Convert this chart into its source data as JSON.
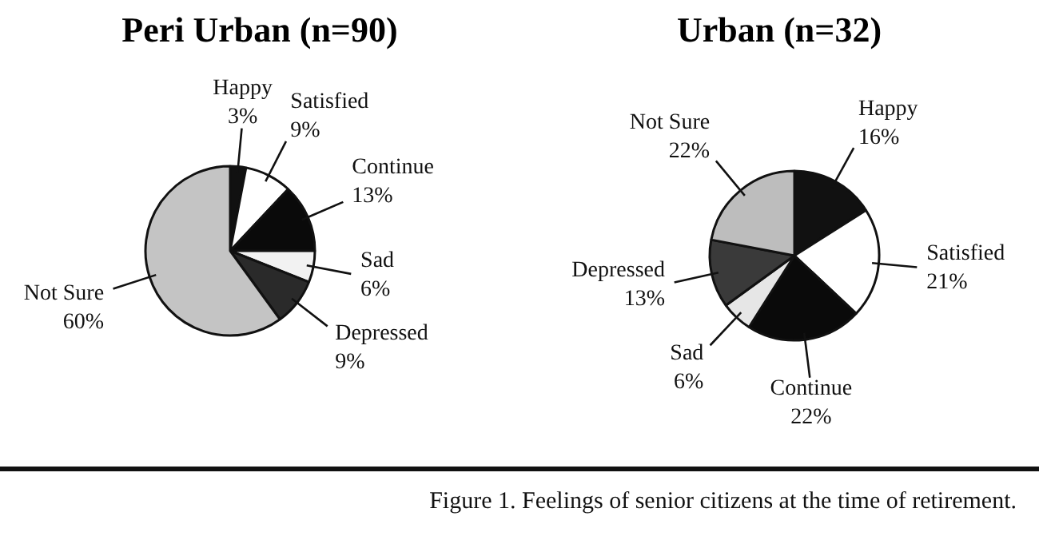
{
  "chart_data": [
    {
      "type": "pie",
      "title": "Peri Urban (n=90)",
      "categories": [
        "Happy",
        "Satisfied",
        "Continue",
        "Sad",
        "Depressed",
        "Not Sure"
      ],
      "values": [
        3,
        9,
        13,
        6,
        9,
        60
      ],
      "value_labels": [
        "3%",
        "9%",
        "13%",
        "6%",
        "9%",
        "60%"
      ],
      "colors": [
        "#111111",
        "#ffffff",
        "#0a0a0a",
        "#f2f2f2",
        "#2a2a2a",
        "#c4c4c4"
      ],
      "legend": false
    },
    {
      "type": "pie",
      "title": "Urban (n=32)",
      "categories": [
        "Happy",
        "Satisfied",
        "Continue",
        "Sad",
        "Depressed",
        "Not Sure"
      ],
      "values": [
        16,
        21,
        22,
        6,
        13,
        22
      ],
      "value_labels": [
        "16%",
        "21%",
        "22%",
        "6%",
        "13%",
        "22%"
      ],
      "colors": [
        "#111111",
        "#ffffff",
        "#0a0a0a",
        "#e6e6e6",
        "#3a3a3a",
        "#bdbdbd"
      ],
      "legend": false,
      "annotations": [
        "Figure 1. Feelings of senior citizens at the time of retirement."
      ]
    }
  ]
}
